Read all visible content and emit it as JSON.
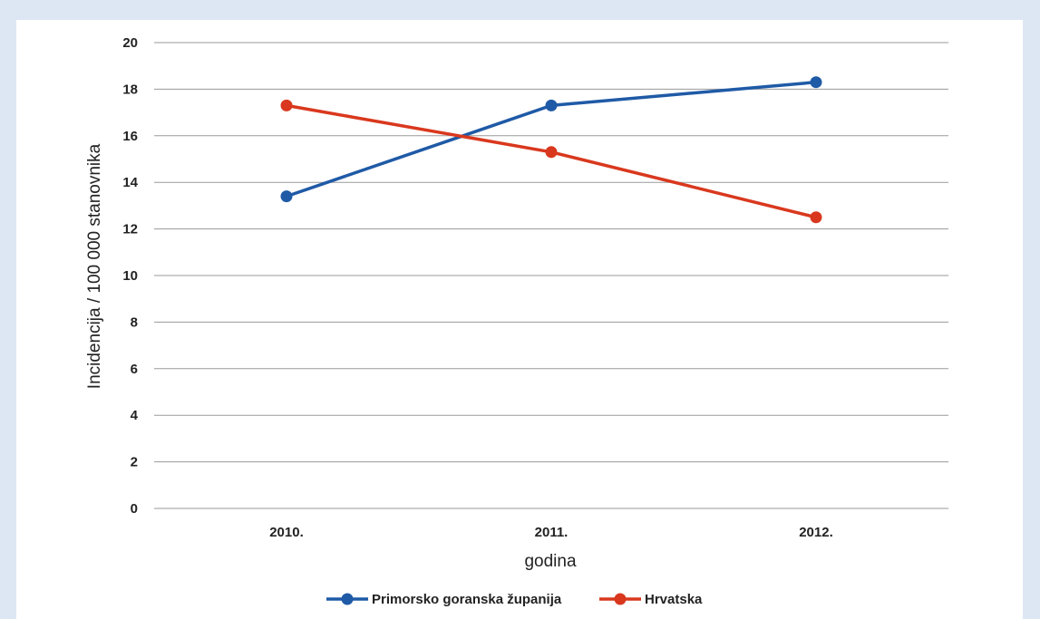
{
  "chart_data": {
    "type": "line",
    "title": "",
    "xlabel": "godina",
    "ylabel": "Incidencija / 100 000 stanovnika",
    "categories": [
      "2010.",
      "2011.",
      "2012."
    ],
    "ylim": [
      0,
      20
    ],
    "yticks": [
      0,
      2,
      4,
      6,
      8,
      10,
      12,
      14,
      16,
      18,
      20
    ],
    "grid": true,
    "legend_position": "bottom",
    "series": [
      {
        "name": "Primorsko goranska županija",
        "color": "#1f5aa6",
        "values": [
          13.4,
          17.3,
          18.3
        ]
      },
      {
        "name": "Hrvatska",
        "color": "#d9381e",
        "values": [
          17.3,
          15.3,
          12.5
        ]
      }
    ]
  }
}
